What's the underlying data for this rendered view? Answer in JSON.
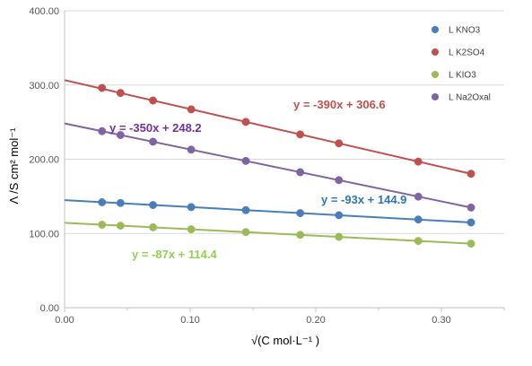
{
  "chart_data": {
    "type": "scatter",
    "xlabel": "√(C mol·L⁻¹ )",
    "ylabel": "Λ /S cm² mol⁻¹",
    "xlim": [
      0,
      0.35
    ],
    "ylim": [
      0,
      400
    ],
    "x_ticks": [
      "0.00",
      "0.10",
      "0.20",
      "0.30"
    ],
    "y_ticks": [
      "0.00",
      "100.00",
      "200.00",
      "300.00",
      "400.00"
    ],
    "grid": "horizontal",
    "legend_position": "top-right",
    "x": [
      0.0298,
      0.0445,
      0.0704,
      0.1008,
      0.1443,
      0.1876,
      0.2184,
      0.2816,
      0.3236
    ],
    "series": [
      {
        "name": "L KNO3",
        "color": "#4a7ebb",
        "values": [
          142.0,
          141.0,
          138.3,
          135.5,
          131.4,
          127.4,
          124.6,
          118.8,
          114.8
        ],
        "trendline": {
          "slope": -93,
          "intercept": 144.9,
          "label": "y = -93x + 144.9",
          "label_color": "#2e75b6"
        }
      },
      {
        "name": "L K2SO4",
        "color": "#c0504d",
        "values": [
          296.0,
          289.3,
          279.1,
          267.2,
          250.3,
          233.4,
          221.4,
          196.8,
          180.4
        ],
        "trendline": {
          "slope": -390,
          "intercept": 306.6,
          "label": "y = -390x + 306.6",
          "label_color": "#c0504d"
        }
      },
      {
        "name": "L KIO3",
        "color": "#9bbb59",
        "values": [
          111.8,
          110.5,
          108.3,
          105.6,
          101.9,
          98.1,
          95.4,
          89.9,
          86.3
        ],
        "trendline": {
          "slope": -87,
          "intercept": 114.4,
          "label": "y = -87x + 114.4",
          "label_color": "#92d050"
        }
      },
      {
        "name": "L Na2Oxal",
        "color": "#8064a2",
        "values": [
          237.8,
          232.6,
          223.6,
          212.9,
          197.7,
          182.5,
          171.8,
          149.6,
          134.9
        ],
        "trendline": {
          "slope": -350,
          "intercept": 248.2,
          "label": "y = -350x + 248.2",
          "label_color": "#7030a0"
        }
      }
    ]
  }
}
